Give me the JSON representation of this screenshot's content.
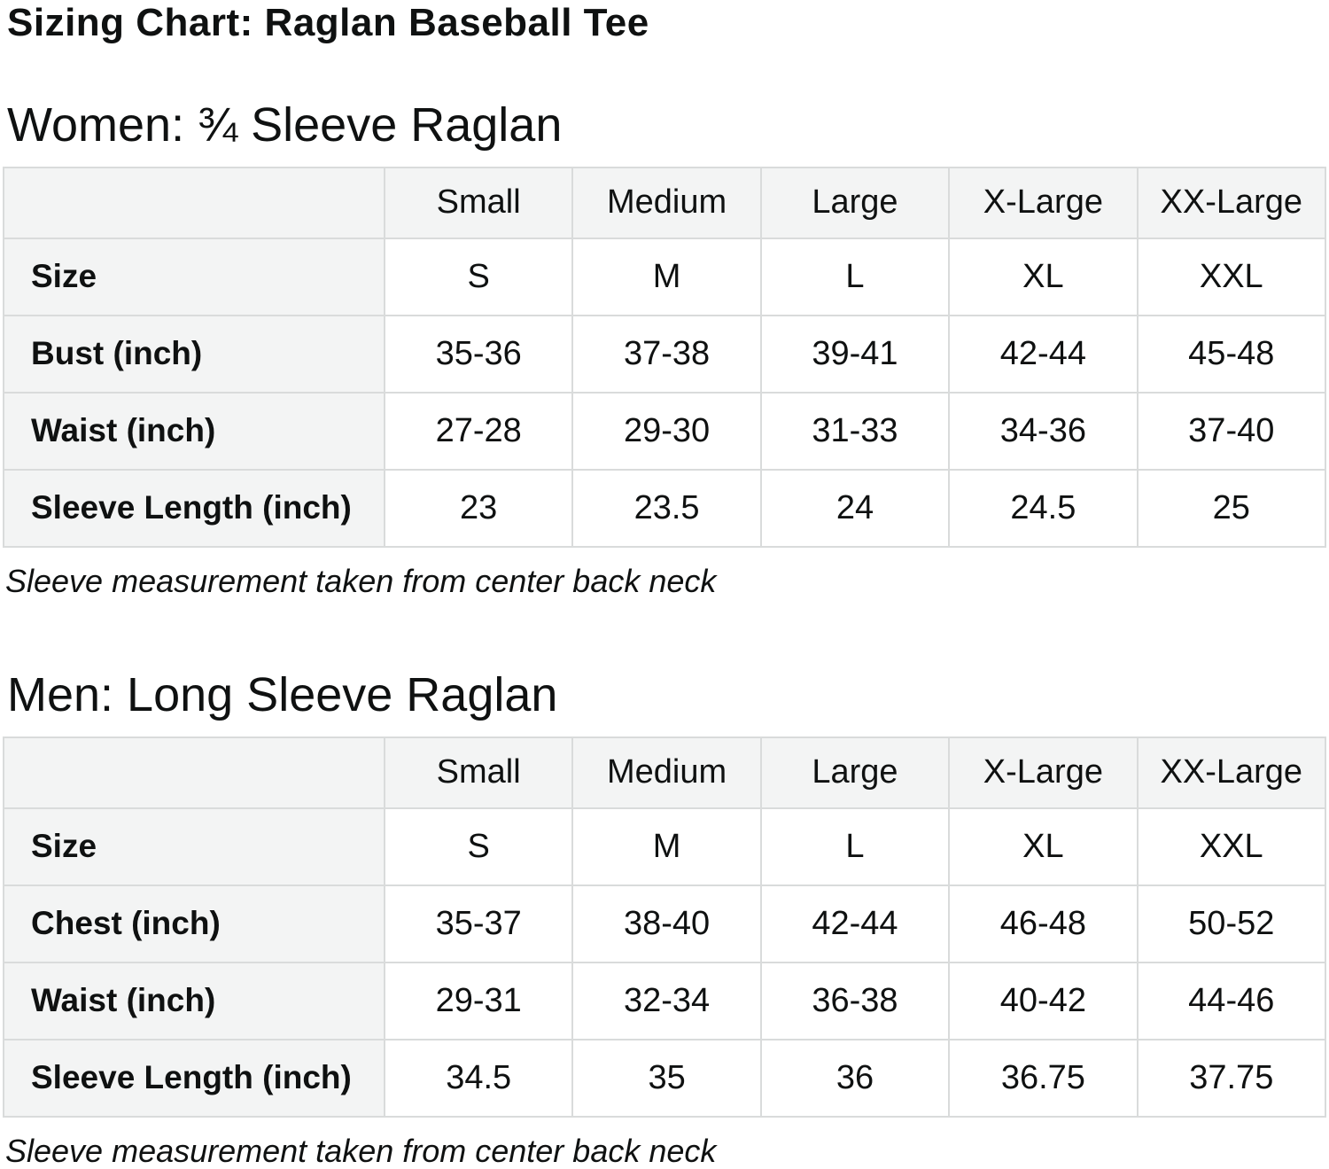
{
  "title": "Sizing Chart: Raglan Baseball Tee",
  "colors": {
    "text": "#0f1111",
    "table_border": "#d9dbdb",
    "header_row_bg": "#f3f4f4",
    "label_column_bg": "#f3f4f4",
    "data_cell_bg": "#ffffff",
    "page_bg": "#ffffff"
  },
  "chart_data": [
    {
      "type": "table",
      "title": "Women: ¾ Sleeve Raglan",
      "columns": [
        "",
        "Small",
        "Medium",
        "Large",
        "X-Large",
        "XX-Large"
      ],
      "rows": [
        [
          "Size",
          "S",
          "M",
          "L",
          "XL",
          "XXL"
        ],
        [
          "Bust (inch)",
          "35-36",
          "37-38",
          "39-41",
          "42-44",
          "45-48"
        ],
        [
          "Waist (inch)",
          "27-28",
          "29-30",
          "31-33",
          "34-36",
          "37-40"
        ],
        [
          "Sleeve Length (inch)",
          "23",
          "23.5",
          "24",
          "24.5",
          "25"
        ]
      ],
      "footnote": "Sleeve measurement taken from center back neck"
    },
    {
      "type": "table",
      "title": "Men: Long Sleeve Raglan",
      "columns": [
        "",
        "Small",
        "Medium",
        "Large",
        "X-Large",
        "XX-Large"
      ],
      "rows": [
        [
          "Size",
          "S",
          "M",
          "L",
          "XL",
          "XXL"
        ],
        [
          "Chest (inch)",
          "35-37",
          "38-40",
          "42-44",
          "46-48",
          "50-52"
        ],
        [
          "Waist (inch)",
          "29-31",
          "32-34",
          "36-38",
          "40-42",
          "44-46"
        ],
        [
          "Sleeve Length (inch)",
          "34.5",
          "35",
          "36",
          "36.75",
          "37.75"
        ]
      ],
      "footnote": "Sleeve measurement taken from center back neck"
    }
  ]
}
